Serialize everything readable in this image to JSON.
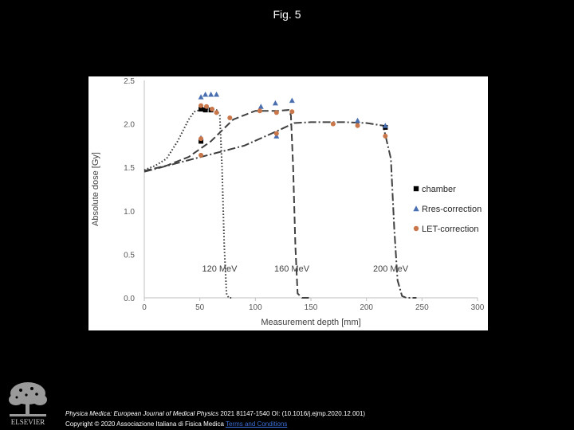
{
  "header": {
    "title": "Fig. 5"
  },
  "footer": {
    "journal": "Physica Medica: European Journal of Medical Physics",
    "citation_rest": " 2021 81147-1540 OI: (10.1016/j.ejmp.2020.12.001)",
    "copyright_text": "Copyright © 2020 Associazione Italiana di Fisica Medica",
    "terms_link": "Terms and Conditions",
    "publisher_logo_text": "ELSEVIER"
  },
  "chart_data": {
    "type": "scatter",
    "xlabel": "Measurement depth [mm]",
    "ylabel": "Absolute dose [Gy]",
    "xlim": [
      0,
      300
    ],
    "ylim": [
      0,
      2.5
    ],
    "x_ticks": [
      0,
      50,
      100,
      150,
      200,
      250,
      300
    ],
    "y_ticks": [
      "0.0",
      "0.5",
      "1.0",
      "1.5",
      "2.0",
      "2.5"
    ],
    "grid": false,
    "legend_position": "right",
    "annotations": [
      {
        "text": "120 MeV",
        "x": 52,
        "y": 0.3
      },
      {
        "text": "160 MeV",
        "x": 117,
        "y": 0.3
      },
      {
        "text": "200 MeV",
        "x": 206,
        "y": 0.3
      }
    ],
    "curves": [
      {
        "style": "dotted",
        "x": [
          0,
          10,
          20,
          30,
          40,
          45,
          50,
          55,
          60,
          65,
          68,
          70,
          72,
          74,
          76,
          80
        ],
        "y": [
          1.47,
          1.52,
          1.6,
          1.8,
          2.05,
          2.14,
          2.16,
          2.17,
          2.17,
          2.16,
          2.1,
          1.5,
          0.6,
          0.05,
          0.0,
          0.0
        ]
      },
      {
        "style": "dashed",
        "x": [
          0,
          20,
          40,
          60,
          80,
          100,
          120,
          130,
          132,
          134,
          136,
          138,
          142,
          150
        ],
        "y": [
          1.46,
          1.52,
          1.62,
          1.8,
          2.05,
          2.15,
          2.15,
          2.16,
          2.1,
          1.5,
          0.6,
          0.05,
          0.0,
          0.0
        ]
      },
      {
        "style": "dash-dot",
        "x": [
          0,
          30,
          60,
          90,
          120,
          135,
          150,
          180,
          200,
          215,
          222,
          225,
          228,
          232,
          236,
          245
        ],
        "y": [
          1.45,
          1.55,
          1.65,
          1.75,
          1.92,
          2.01,
          2.02,
          2.02,
          2.01,
          1.98,
          1.6,
          0.8,
          0.2,
          0.02,
          0.0,
          0.0
        ]
      }
    ],
    "series": [
      {
        "name": "chamber",
        "marker": "square",
        "color": "#000000",
        "points": [
          [
            51,
            1.8
          ],
          [
            51,
            2.17
          ],
          [
            55,
            2.16
          ],
          [
            60,
            2.16
          ],
          [
            217,
            1.96
          ]
        ]
      },
      {
        "name": "Rres-correction",
        "marker": "triangle",
        "color": "#4a6fb0",
        "points": [
          [
            51,
            2.31
          ],
          [
            55,
            2.34
          ],
          [
            60,
            2.34
          ],
          [
            65,
            2.34
          ],
          [
            105,
            2.2
          ],
          [
            118,
            2.24
          ],
          [
            133,
            2.27
          ],
          [
            192,
            2.04
          ],
          [
            217,
            1.98
          ],
          [
            119,
            1.86
          ],
          [
            51,
            1.84
          ]
        ]
      },
      {
        "name": "LET-correction",
        "marker": "circle",
        "color": "#c8764a",
        "points": [
          [
            51,
            2.21
          ],
          [
            56,
            2.2
          ],
          [
            61,
            2.17
          ],
          [
            65,
            2.13
          ],
          [
            51,
            1.83
          ],
          [
            51,
            1.64
          ],
          [
            77,
            2.07
          ],
          [
            104,
            2.15
          ],
          [
            119,
            2.13
          ],
          [
            133,
            2.14
          ],
          [
            119,
            1.89
          ],
          [
            170,
            2.0
          ],
          [
            192,
            1.98
          ],
          [
            217,
            1.86
          ]
        ]
      }
    ]
  }
}
